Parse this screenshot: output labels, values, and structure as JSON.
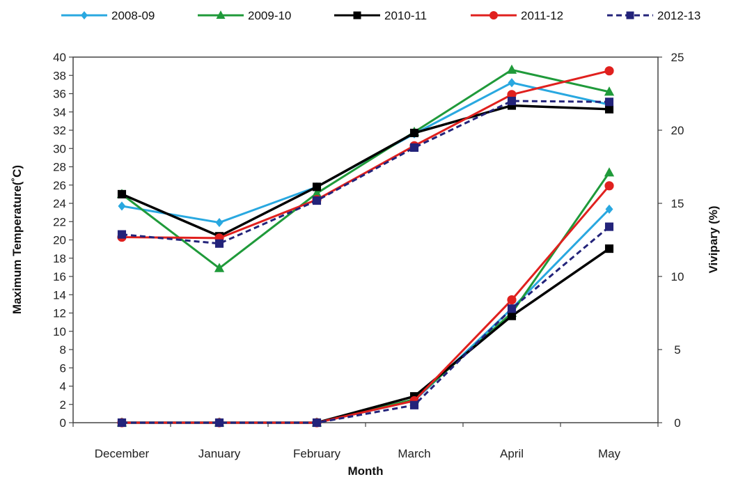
{
  "chart_data": {
    "type": "line",
    "title": "",
    "xlabel": "Month",
    "ylabel": "Maximum Temperature(˚C)",
    "y2label": "Vivipary  (%)",
    "categories": [
      "December",
      "January",
      "February",
      "March",
      "April",
      "May"
    ],
    "ylim": [
      0,
      40
    ],
    "y2lim": [
      0,
      25
    ],
    "yticks": [
      "0",
      "2",
      "4",
      "6",
      "8",
      "10",
      "12",
      "14",
      "16",
      "18",
      "20",
      "22",
      "24",
      "26",
      "28",
      "30",
      "32",
      "34",
      "36",
      "38",
      "40"
    ],
    "y2ticks": [
      "0",
      "5",
      "10",
      "15",
      "20",
      "25"
    ],
    "grid": false,
    "legend_position": "top",
    "series": [
      {
        "name": "2008-09",
        "color": "#29a8e0",
        "marker": "diamond",
        "dash": false,
        "temperature": [
          23.7,
          21.9,
          25.8,
          31.6,
          37.2,
          34.8
        ],
        "vivipary": [
          0,
          0,
          0,
          1.5,
          7.8,
          14.6
        ]
      },
      {
        "name": "2009-10",
        "color": "#1f9a3a",
        "marker": "triangle",
        "dash": false,
        "temperature": [
          25.0,
          16.9,
          25.1,
          31.8,
          38.6,
          36.2
        ],
        "vivipary": [
          0,
          0,
          0,
          1.6,
          7.5,
          17.1
        ]
      },
      {
        "name": "2010-11",
        "color": "#000000",
        "marker": "square",
        "dash": false,
        "temperature": [
          25.0,
          20.4,
          25.8,
          31.7,
          34.7,
          34.3
        ],
        "vivipary": [
          0,
          0,
          0,
          1.8,
          7.3,
          11.9
        ]
      },
      {
        "name": "2011-12",
        "color": "#e0201e",
        "marker": "circle",
        "dash": false,
        "temperature": [
          20.3,
          20.2,
          24.4,
          30.3,
          35.9,
          38.5
        ],
        "vivipary": [
          0,
          0,
          0,
          1.5,
          8.4,
          16.2
        ]
      },
      {
        "name": "2012-13",
        "color": "#23237a",
        "marker": "square",
        "dash": true,
        "temperature": [
          20.6,
          19.6,
          24.3,
          30.1,
          35.2,
          35.1
        ],
        "vivipary": [
          0,
          0,
          0,
          1.2,
          7.8,
          13.4
        ]
      }
    ]
  }
}
